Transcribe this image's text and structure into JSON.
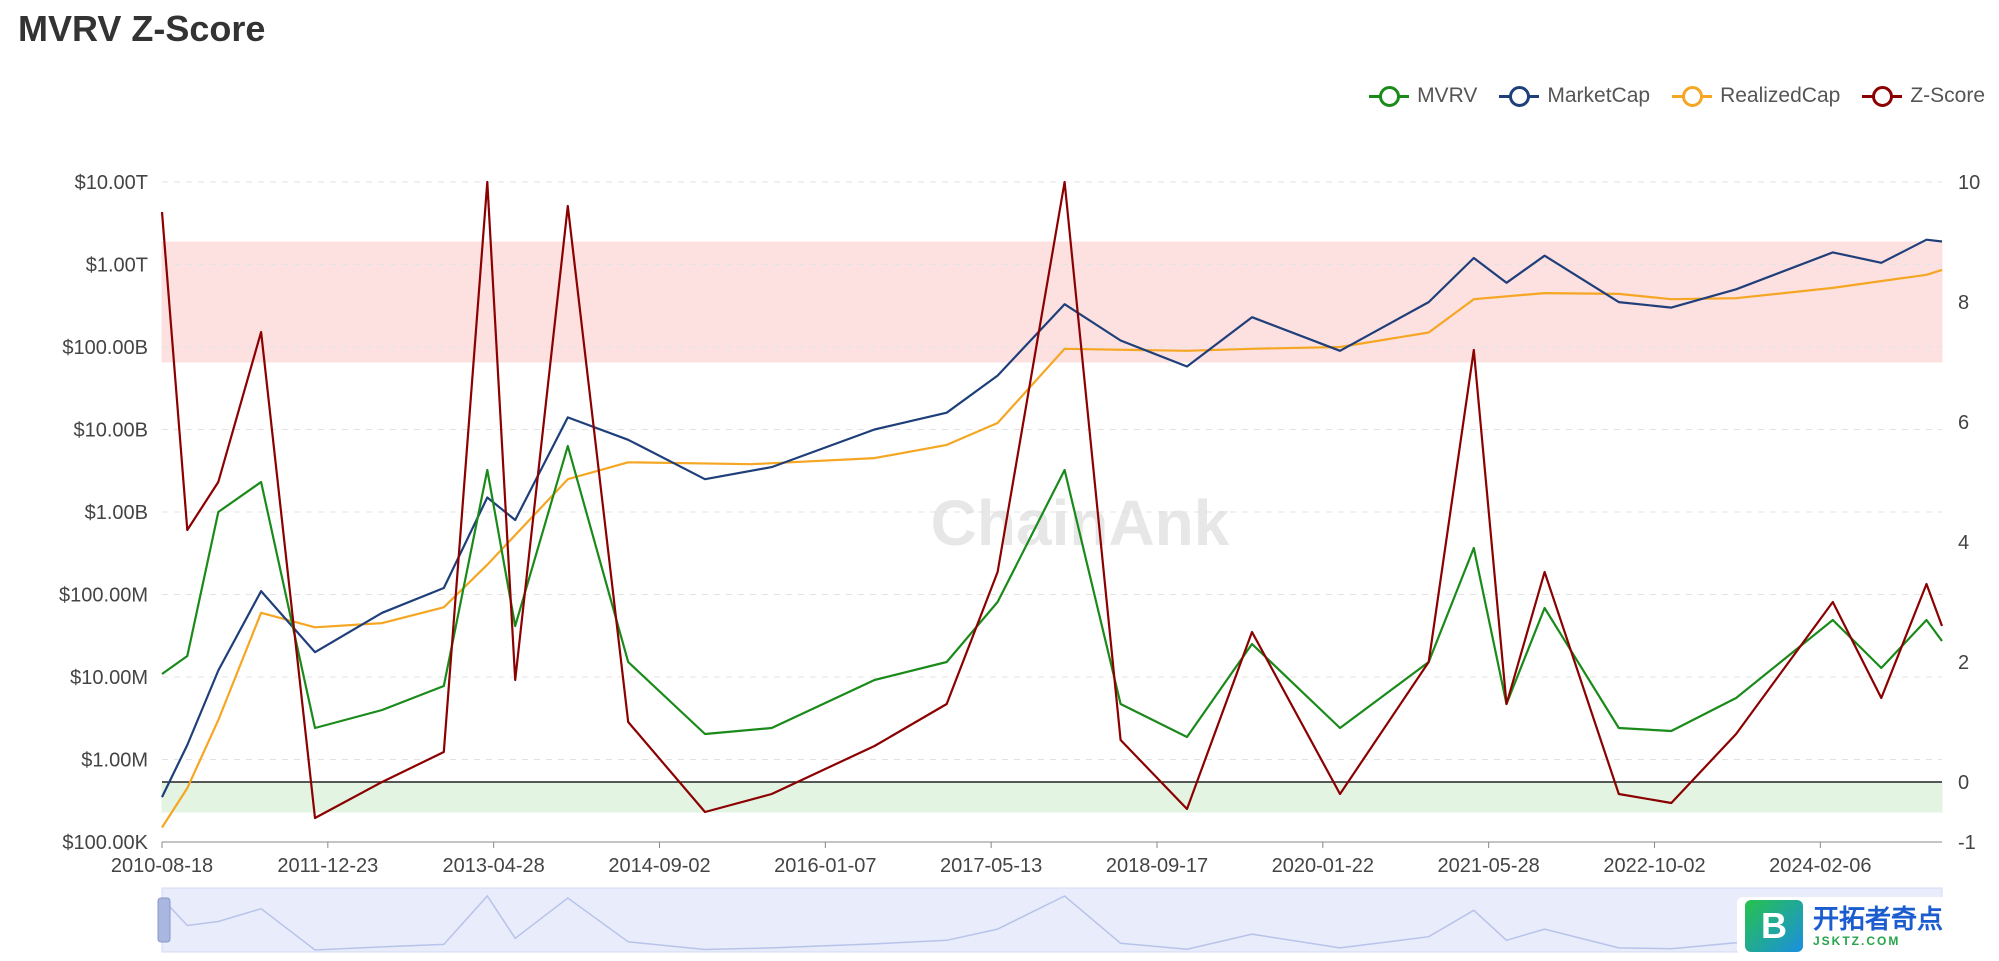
{
  "title": "MVRV Z-Score",
  "legend": [
    {
      "name": "MVRV",
      "color": "#1a8a1a"
    },
    {
      "name": "MarketCap",
      "color": "#1f3f7a"
    },
    {
      "name": "RealizedCap",
      "color": "#f5a623"
    },
    {
      "name": "Z-Score",
      "color": "#8b0000"
    }
  ],
  "watermark": "ChainAnk",
  "badge": {
    "mark": "B",
    "cn": "开拓者奇点",
    "en": "JSKTZ.COM"
  },
  "chart_data": {
    "type": "line",
    "title": "MVRV Z-Score",
    "x_ticks": [
      "2010-08-18",
      "2011-12-23",
      "2013-04-28",
      "2014-09-02",
      "2016-01-07",
      "2017-05-13",
      "2018-09-17",
      "2020-01-22",
      "2021-05-28",
      "2022-10-02",
      "2024-02-06"
    ],
    "y_left": {
      "scale": "log",
      "range": [
        100000,
        10000000000000
      ],
      "ticks": [
        "$100.00K",
        "$1.00M",
        "$10.00M",
        "$100.00M",
        "$1.00B",
        "$10.00B",
        "$100.00B",
        "$1.00T",
        "$10.00T"
      ]
    },
    "y_right": {
      "scale": "linear",
      "range": [
        -1,
        10
      ],
      "ticks": [
        "-1",
        "0",
        "2",
        "4",
        "6",
        "8",
        "10"
      ]
    },
    "bands": [
      {
        "axis": "right",
        "from": 7,
        "to": 9,
        "color": "#fde0e0"
      },
      {
        "axis": "right",
        "from": -0.5,
        "to": 0,
        "color": "#e3f4e3"
      }
    ],
    "series": [
      {
        "name": "MarketCap",
        "axis": "left",
        "points": [
          [
            "2010-08-18",
            350000
          ],
          [
            "2010-11-01",
            1500000
          ],
          [
            "2011-02-01",
            12000000
          ],
          [
            "2011-06-08",
            110000000
          ],
          [
            "2011-11-15",
            20000000
          ],
          [
            "2012-06-01",
            60000000
          ],
          [
            "2012-12-01",
            120000000
          ],
          [
            "2013-04-09",
            1500000000
          ],
          [
            "2013-07-01",
            800000000
          ],
          [
            "2013-12-04",
            14000000000
          ],
          [
            "2014-06-01",
            7500000000
          ],
          [
            "2015-01-15",
            2500000000
          ],
          [
            "2015-08-01",
            3500000000
          ],
          [
            "2016-06-01",
            10000000000
          ],
          [
            "2017-01-01",
            16000000000
          ],
          [
            "2017-06-01",
            45000000000
          ],
          [
            "2017-12-17",
            330000000000
          ],
          [
            "2018-06-01",
            120000000000
          ],
          [
            "2018-12-15",
            58000000000
          ],
          [
            "2019-06-26",
            230000000000
          ],
          [
            "2020-03-13",
            90000000000
          ],
          [
            "2020-12-01",
            350000000000
          ],
          [
            "2021-04-14",
            1200000000000
          ],
          [
            "2021-07-20",
            600000000000
          ],
          [
            "2021-11-10",
            1280000000000
          ],
          [
            "2022-06-18",
            350000000000
          ],
          [
            "2022-11-21",
            300000000000
          ],
          [
            "2023-06-01",
            500000000000
          ],
          [
            "2024-03-14",
            1400000000000
          ],
          [
            "2024-08-05",
            1050000000000
          ],
          [
            "2024-12-17",
            2000000000000
          ],
          [
            "2025-02-01",
            1900000000000
          ]
        ]
      },
      {
        "name": "RealizedCap",
        "axis": "left",
        "points": [
          [
            "2010-08-18",
            150000
          ],
          [
            "2010-11-01",
            450000
          ],
          [
            "2011-02-01",
            3000000
          ],
          [
            "2011-06-08",
            60000000
          ],
          [
            "2011-11-15",
            40000000
          ],
          [
            "2012-06-01",
            45000000
          ],
          [
            "2012-12-01",
            70000000
          ],
          [
            "2013-04-09",
            230000000
          ],
          [
            "2013-12-04",
            2500000000
          ],
          [
            "2014-06-01",
            4000000000
          ],
          [
            "2015-06-01",
            3800000000
          ],
          [
            "2016-06-01",
            4500000000
          ],
          [
            "2017-01-01",
            6500000000
          ],
          [
            "2017-06-01",
            12000000000
          ],
          [
            "2017-12-17",
            95000000000
          ],
          [
            "2018-12-15",
            90000000000
          ],
          [
            "2019-06-26",
            95000000000
          ],
          [
            "2020-03-13",
            100000000000
          ],
          [
            "2020-12-01",
            150000000000
          ],
          [
            "2021-04-14",
            380000000000
          ],
          [
            "2021-11-10",
            450000000000
          ],
          [
            "2022-06-18",
            440000000000
          ],
          [
            "2022-11-21",
            380000000000
          ],
          [
            "2023-06-01",
            390000000000
          ],
          [
            "2024-03-14",
            520000000000
          ],
          [
            "2024-12-17",
            750000000000
          ],
          [
            "2025-02-01",
            860000000000
          ]
        ]
      },
      {
        "name": "MVRV",
        "axis": "right",
        "points": [
          [
            "2010-08-18",
            1.8
          ],
          [
            "2010-11-01",
            2.1
          ],
          [
            "2011-02-01",
            4.5
          ],
          [
            "2011-06-08",
            5.0
          ],
          [
            "2011-11-15",
            0.9
          ],
          [
            "2012-06-01",
            1.2
          ],
          [
            "2012-12-01",
            1.6
          ],
          [
            "2013-04-09",
            5.2
          ],
          [
            "2013-07-01",
            2.6
          ],
          [
            "2013-12-04",
            5.6
          ],
          [
            "2014-06-01",
            2.0
          ],
          [
            "2015-01-15",
            0.8
          ],
          [
            "2015-08-01",
            0.9
          ],
          [
            "2016-06-01",
            1.7
          ],
          [
            "2017-01-01",
            2.0
          ],
          [
            "2017-06-01",
            3.0
          ],
          [
            "2017-12-17",
            5.2
          ],
          [
            "2018-06-01",
            1.3
          ],
          [
            "2018-12-15",
            0.75
          ],
          [
            "2019-06-26",
            2.3
          ],
          [
            "2020-03-13",
            0.9
          ],
          [
            "2020-12-01",
            2.0
          ],
          [
            "2021-04-14",
            3.9
          ],
          [
            "2021-07-20",
            1.3
          ],
          [
            "2021-11-10",
            2.9
          ],
          [
            "2022-06-18",
            0.9
          ],
          [
            "2022-11-21",
            0.85
          ],
          [
            "2023-06-01",
            1.4
          ],
          [
            "2024-03-14",
            2.7
          ],
          [
            "2024-08-05",
            1.9
          ],
          [
            "2024-12-17",
            2.7
          ],
          [
            "2025-02-01",
            2.35
          ]
        ]
      },
      {
        "name": "Z-Score",
        "axis": "right",
        "points": [
          [
            "2010-08-18",
            9.5
          ],
          [
            "2010-11-01",
            4.2
          ],
          [
            "2011-02-01",
            5.0
          ],
          [
            "2011-06-08",
            7.5
          ],
          [
            "2011-11-15",
            -0.6
          ],
          [
            "2012-06-01",
            0.0
          ],
          [
            "2012-12-01",
            0.5
          ],
          [
            "2013-04-09",
            10.0
          ],
          [
            "2013-07-01",
            1.7
          ],
          [
            "2013-12-04",
            9.6
          ],
          [
            "2014-06-01",
            1.0
          ],
          [
            "2015-01-15",
            -0.5
          ],
          [
            "2015-08-01",
            -0.2
          ],
          [
            "2016-06-01",
            0.6
          ],
          [
            "2017-01-01",
            1.3
          ],
          [
            "2017-06-01",
            3.5
          ],
          [
            "2017-12-17",
            10.0
          ],
          [
            "2018-06-01",
            0.7
          ],
          [
            "2018-12-15",
            -0.45
          ],
          [
            "2019-06-26",
            2.5
          ],
          [
            "2020-03-13",
            -0.2
          ],
          [
            "2020-12-01",
            2.0
          ],
          [
            "2021-04-14",
            7.2
          ],
          [
            "2021-07-20",
            1.3
          ],
          [
            "2021-11-10",
            3.5
          ],
          [
            "2022-06-18",
            -0.2
          ],
          [
            "2022-11-21",
            -0.35
          ],
          [
            "2023-06-01",
            0.8
          ],
          [
            "2024-03-14",
            3.0
          ],
          [
            "2024-08-05",
            1.4
          ],
          [
            "2024-12-17",
            3.3
          ],
          [
            "2025-02-01",
            2.6
          ]
        ]
      }
    ],
    "grid": true,
    "legend_position": "top-right"
  }
}
